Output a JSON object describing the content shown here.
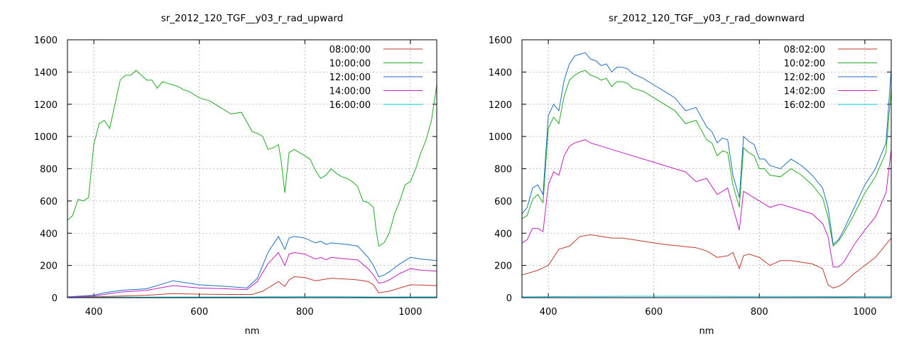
{
  "chart_data": [
    {
      "type": "line",
      "title": "sr_2012_120_TGF__y03_r_rad_upward",
      "xlabel": "nm",
      "ylabel": "",
      "xlim": [
        350,
        1050
      ],
      "ylim": [
        0,
        1600
      ],
      "xticks": [
        400,
        600,
        800,
        1000
      ],
      "yticks": [
        0,
        200,
        400,
        600,
        800,
        1000,
        1200,
        1400,
        1600
      ],
      "grid": true,
      "legend_position": "top-right",
      "series": [
        {
          "name": "08:00:00",
          "color": "#c0392b",
          "x": [
            350,
            400,
            450,
            500,
            550,
            600,
            650,
            700,
            720,
            740,
            750,
            762,
            770,
            780,
            800,
            820,
            840,
            850,
            880,
            900,
            920,
            930,
            940,
            960,
            980,
            1000,
            1020,
            1050
          ],
          "y": [
            2,
            5,
            10,
            15,
            25,
            22,
            20,
            20,
            40,
            80,
            100,
            70,
            110,
            130,
            125,
            105,
            115,
            120,
            115,
            110,
            100,
            80,
            30,
            40,
            60,
            80,
            78,
            75
          ]
        },
        {
          "name": "10:00:00",
          "color": "#22aa22",
          "x": [
            350,
            360,
            370,
            380,
            390,
            400,
            410,
            420,
            430,
            440,
            450,
            460,
            470,
            480,
            490,
            500,
            510,
            520,
            530,
            540,
            550,
            560,
            570,
            580,
            590,
            600,
            620,
            640,
            660,
            680,
            700,
            710,
            720,
            730,
            740,
            750,
            755,
            762,
            770,
            780,
            800,
            810,
            820,
            830,
            840,
            850,
            860,
            870,
            880,
            890,
            900,
            910,
            920,
            930,
            935,
            940,
            950,
            960,
            970,
            980,
            990,
            1000,
            1010,
            1020,
            1030,
            1040,
            1050
          ],
          "y": [
            480,
            510,
            610,
            600,
            620,
            950,
            1080,
            1100,
            1050,
            1200,
            1350,
            1380,
            1380,
            1410,
            1380,
            1350,
            1350,
            1300,
            1340,
            1330,
            1320,
            1310,
            1290,
            1280,
            1260,
            1240,
            1220,
            1180,
            1140,
            1150,
            1030,
            1020,
            1000,
            920,
            930,
            950,
            850,
            650,
            900,
            920,
            880,
            860,
            790,
            740,
            760,
            800,
            770,
            750,
            740,
            720,
            690,
            600,
            590,
            560,
            420,
            320,
            340,
            400,
            520,
            600,
            700,
            720,
            800,
            900,
            980,
            1100,
            1320
          ]
        },
        {
          "name": "12:00:00",
          "color": "#1e6fc2",
          "x": [
            350,
            400,
            420,
            450,
            500,
            550,
            600,
            650,
            690,
            710,
            730,
            750,
            762,
            770,
            780,
            800,
            820,
            830,
            840,
            850,
            880,
            900,
            920,
            930,
            940,
            950,
            960,
            980,
            1000,
            1020,
            1050
          ],
          "y": [
            5,
            15,
            30,
            45,
            55,
            105,
            80,
            70,
            60,
            120,
            280,
            380,
            300,
            370,
            380,
            370,
            340,
            350,
            330,
            340,
            330,
            320,
            250,
            200,
            130,
            140,
            160,
            210,
            250,
            240,
            230
          ]
        },
        {
          "name": "14:00:00",
          "color": "#c020c0",
          "x": [
            350,
            400,
            420,
            450,
            500,
            550,
            600,
            650,
            690,
            710,
            730,
            750,
            762,
            770,
            780,
            800,
            820,
            830,
            840,
            850,
            880,
            900,
            920,
            930,
            940,
            950,
            960,
            980,
            1000,
            1020,
            1050
          ],
          "y": [
            3,
            10,
            20,
            35,
            45,
            75,
            60,
            55,
            50,
            100,
            210,
            280,
            200,
            270,
            280,
            270,
            240,
            250,
            235,
            250,
            240,
            235,
            180,
            140,
            90,
            95,
            110,
            150,
            180,
            170,
            165
          ]
        },
        {
          "name": "16:00:00",
          "color": "#00c8e0",
          "x": [
            350,
            400,
            450,
            500,
            550,
            600,
            650,
            700,
            720,
            740,
            760,
            780,
            800,
            850,
            900,
            940,
            960,
            1000,
            1050
          ],
          "y": [
            1,
            2,
            3,
            3,
            4,
            4,
            4,
            4,
            5,
            6,
            5,
            6,
            6,
            6,
            5,
            4,
            4,
            5,
            5
          ]
        }
      ]
    },
    {
      "type": "line",
      "title": "sr_2012_120_TGF__y03_r_rad_downward",
      "xlabel": "nm",
      "ylabel": "",
      "xlim": [
        350,
        1050
      ],
      "ylim": [
        0,
        1600
      ],
      "xticks": [
        400,
        600,
        800,
        1000
      ],
      "yticks": [
        0,
        200,
        400,
        600,
        800,
        1000,
        1200,
        1400,
        1600
      ],
      "grid": true,
      "legend_position": "top-right",
      "series": [
        {
          "name": "08:02:00",
          "color": "#c0392b",
          "x": [
            350,
            380,
            400,
            420,
            440,
            460,
            480,
            500,
            520,
            540,
            560,
            600,
            620,
            650,
            680,
            700,
            720,
            740,
            750,
            762,
            770,
            780,
            800,
            820,
            840,
            860,
            880,
            900,
            920,
            930,
            940,
            950,
            960,
            980,
            1000,
            1020,
            1050
          ],
          "y": [
            140,
            170,
            200,
            300,
            320,
            380,
            390,
            380,
            370,
            370,
            360,
            340,
            330,
            320,
            310,
            290,
            250,
            260,
            280,
            180,
            260,
            270,
            250,
            200,
            230,
            230,
            220,
            210,
            180,
            80,
            60,
            70,
            90,
            150,
            200,
            250,
            370
          ]
        },
        {
          "name": "10:02:00",
          "color": "#22aa22",
          "x": [
            350,
            360,
            370,
            380,
            390,
            400,
            410,
            420,
            430,
            440,
            450,
            460,
            470,
            480,
            490,
            500,
            510,
            520,
            530,
            540,
            550,
            560,
            580,
            600,
            620,
            640,
            660,
            680,
            700,
            710,
            720,
            730,
            740,
            750,
            762,
            770,
            780,
            790,
            800,
            810,
            820,
            840,
            860,
            880,
            900,
            920,
            930,
            940,
            950,
            960,
            980,
            1000,
            1020,
            1040,
            1050
          ],
          "y": [
            490,
            510,
            610,
            640,
            590,
            1050,
            1120,
            1080,
            1250,
            1350,
            1380,
            1400,
            1410,
            1380,
            1370,
            1350,
            1360,
            1310,
            1340,
            1340,
            1330,
            1300,
            1280,
            1240,
            1200,
            1160,
            1080,
            1100,
            980,
            960,
            880,
            910,
            900,
            700,
            560,
            930,
            900,
            880,
            800,
            800,
            760,
            750,
            800,
            760,
            700,
            620,
            500,
            320,
            350,
            400,
            520,
            650,
            750,
            900,
            1300
          ]
        },
        {
          "name": "12:02:00",
          "color": "#1e6fc2",
          "x": [
            350,
            360,
            370,
            380,
            390,
            400,
            410,
            420,
            430,
            440,
            450,
            460,
            470,
            480,
            490,
            500,
            510,
            520,
            530,
            540,
            550,
            560,
            580,
            600,
            620,
            640,
            660,
            680,
            700,
            710,
            720,
            730,
            740,
            750,
            762,
            770,
            780,
            790,
            800,
            810,
            820,
            840,
            860,
            880,
            900,
            920,
            930,
            940,
            950,
            960,
            980,
            1000,
            1020,
            1040,
            1050
          ],
          "y": [
            520,
            560,
            680,
            700,
            640,
            1130,
            1200,
            1160,
            1350,
            1450,
            1500,
            1510,
            1520,
            1480,
            1470,
            1440,
            1450,
            1400,
            1430,
            1430,
            1420,
            1390,
            1360,
            1320,
            1280,
            1240,
            1160,
            1180,
            1060,
            1030,
            960,
            990,
            980,
            760,
            620,
            1000,
            970,
            950,
            860,
            860,
            820,
            800,
            860,
            820,
            760,
            680,
            560,
            330,
            360,
            420,
            560,
            700,
            800,
            960,
            1420
          ]
        },
        {
          "name": "14:02:00",
          "color": "#c020c0",
          "x": [
            350,
            360,
            370,
            380,
            390,
            400,
            410,
            420,
            430,
            440,
            450,
            460,
            470,
            480,
            490,
            500,
            520,
            540,
            560,
            580,
            600,
            620,
            640,
            660,
            680,
            700,
            720,
            740,
            750,
            762,
            770,
            780,
            800,
            820,
            840,
            860,
            880,
            900,
            920,
            930,
            940,
            950,
            960,
            980,
            1000,
            1020,
            1040,
            1050
          ],
          "y": [
            340,
            360,
            430,
            430,
            410,
            700,
            780,
            760,
            880,
            940,
            960,
            970,
            980,
            960,
            950,
            940,
            920,
            900,
            880,
            860,
            840,
            820,
            800,
            780,
            720,
            740,
            640,
            680,
            560,
            420,
            660,
            640,
            600,
            560,
            580,
            560,
            540,
            520,
            460,
            380,
            190,
            190,
            220,
            330,
            420,
            500,
            650,
            920
          ]
        },
        {
          "name": "16:02:00",
          "color": "#00c8e0",
          "x": [
            350,
            400,
            450,
            500,
            550,
            600,
            650,
            700,
            750,
            800,
            850,
            900,
            940,
            960,
            1000,
            1050
          ],
          "y": [
            5,
            6,
            8,
            8,
            9,
            9,
            9,
            9,
            8,
            8,
            8,
            7,
            6,
            6,
            7,
            8
          ]
        }
      ]
    }
  ]
}
